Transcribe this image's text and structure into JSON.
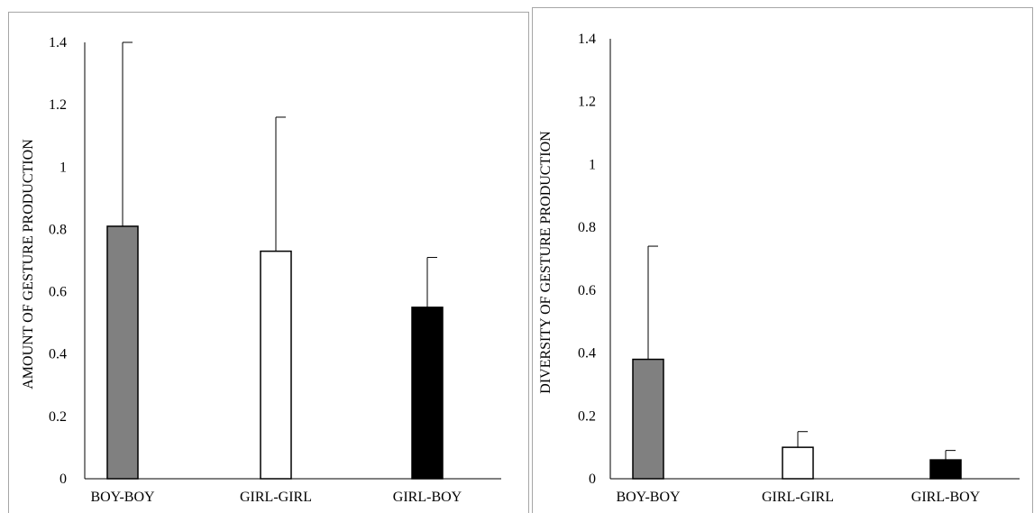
{
  "chart_data": [
    {
      "type": "bar",
      "title": "",
      "xlabel": "",
      "ylabel": "AMOUNT OF GESTURE PRODUCTION",
      "categories": [
        "BOY-BOY",
        "GIRL-GIRL",
        "GIRL-BOY"
      ],
      "values": [
        0.81,
        0.73,
        0.55
      ],
      "error_upper": [
        1.4,
        1.16,
        0.71
      ],
      "bar_colors": [
        "#808080",
        "#ffffff",
        "#000000"
      ],
      "ylim": [
        0,
        1.4
      ],
      "yticks": [
        "0",
        "0.2",
        "0.4",
        "0.6",
        "0.8",
        "1",
        "1.2",
        "1.4"
      ],
      "grid": false,
      "legend": "none"
    },
    {
      "type": "bar",
      "title": "",
      "xlabel": "",
      "ylabel": "DIVERSITY OF GESTURE  PRODUCTION",
      "categories": [
        "BOY-BOY",
        "GIRL-GIRL",
        "GIRL-BOY"
      ],
      "values": [
        0.38,
        0.1,
        0.06
      ],
      "error_upper": [
        0.74,
        0.15,
        0.09
      ],
      "bar_colors": [
        "#808080",
        "#ffffff",
        "#000000"
      ],
      "ylim": [
        0,
        1.4
      ],
      "yticks": [
        "0",
        "0.2",
        "0.4",
        "0.6",
        "0.8",
        "1",
        "1.2",
        "1.4"
      ],
      "grid": false,
      "legend": "none"
    }
  ]
}
